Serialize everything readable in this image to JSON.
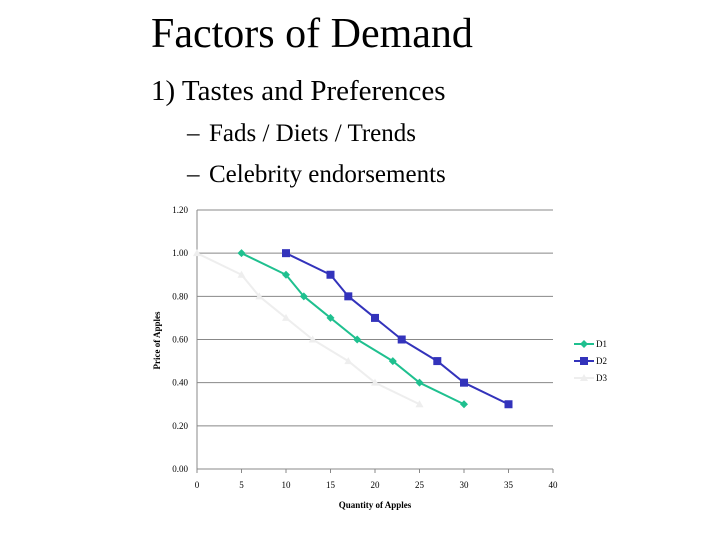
{
  "slide": {
    "title": "Factors of Demand",
    "bullet": "1) Tastes and Preferences",
    "sub_bullets": [
      "Fads / Diets / Trends",
      "Celebrity endorsements"
    ],
    "dash": "–"
  },
  "chart_data": {
    "type": "line",
    "title": "",
    "xlabel": "Quantity of Apples",
    "ylabel": "Price of Apples",
    "xlim": [
      0,
      40
    ],
    "ylim": [
      0,
      1.2
    ],
    "x_ticks": [
      "0",
      "5",
      "10",
      "15",
      "20",
      "25",
      "30",
      "35",
      "40"
    ],
    "y_ticks": [
      "0.00",
      "0.20",
      "0.40",
      "0.60",
      "0.80",
      "1.00",
      "1.20"
    ],
    "grid": "horizontal",
    "legend_position": "right",
    "series": [
      {
        "name": "D1",
        "color": "#1fc08f",
        "marker": "diamond",
        "x": [
          5,
          10,
          12,
          15,
          18,
          22,
          25,
          30
        ],
        "y": [
          1.0,
          0.9,
          0.8,
          0.7,
          0.6,
          0.5,
          0.4,
          0.3
        ]
      },
      {
        "name": "D2",
        "color": "#3333bb",
        "marker": "square",
        "x": [
          10,
          15,
          17,
          20,
          23,
          27,
          30,
          35
        ],
        "y": [
          1.0,
          0.9,
          0.8,
          0.7,
          0.6,
          0.5,
          0.4,
          0.3
        ]
      },
      {
        "name": "D3",
        "color": "#eeeeee",
        "marker": "triangle",
        "x": [
          0,
          5,
          7,
          10,
          13,
          17,
          20,
          25
        ],
        "y": [
          1.0,
          0.9,
          0.8,
          0.7,
          0.6,
          0.5,
          0.4,
          0.3
        ]
      }
    ]
  }
}
